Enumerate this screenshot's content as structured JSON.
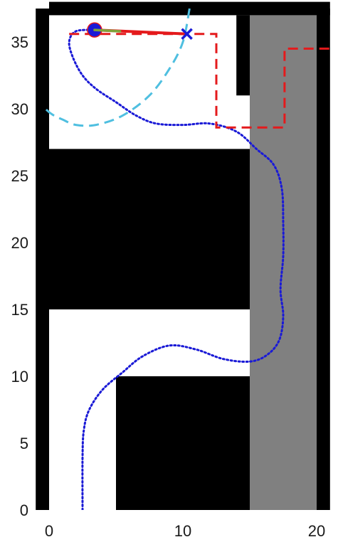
{
  "chart_data": {
    "type": "map",
    "xlim": [
      0,
      21
    ],
    "ylim": [
      0,
      37
    ],
    "x_ticks": [
      0,
      10,
      20
    ],
    "y_ticks": [
      0,
      5,
      10,
      15,
      20,
      25,
      30,
      35
    ],
    "x_tick_labels": [
      "0",
      "10",
      "20"
    ],
    "y_tick_labels": [
      "0",
      "5",
      "10",
      "15",
      "20",
      "25",
      "30",
      "35"
    ],
    "grid": false,
    "legend": "none",
    "colors": {
      "obstacle": "#000000",
      "free": "#ffffff",
      "shaded_region": "#808080",
      "planned_path": "#e41a1c",
      "reference_path": "#1a1ad6",
      "arc": "#4fbfe0",
      "robot": "#1a1ad6",
      "heading": "#7fa33a"
    },
    "obstacles": [
      {
        "x0": -1,
        "y0": 0,
        "x1": 0,
        "y1": 37.5
      },
      {
        "x0": 0,
        "y0": 37,
        "x1": 21,
        "y1": 38
      },
      {
        "x0": 20,
        "y0": 0,
        "x1": 21,
        "y1": 37.5
      },
      {
        "x0": 0,
        "y0": 15,
        "x1": 15,
        "y1": 27
      },
      {
        "x0": 5,
        "y0": 0,
        "x1": 15,
        "y1": 10
      },
      {
        "x0": 14,
        "y0": 31,
        "x1": 15,
        "y1": 37
      }
    ],
    "shaded_region": {
      "x0": 15,
      "y0": 0,
      "x1": 20,
      "y1": 37
    },
    "planned_path": [
      [
        1.5,
        35.6
      ],
      [
        12.5,
        35.6
      ],
      [
        12.5,
        28.6
      ],
      [
        17.6,
        28.6
      ],
      [
        17.6,
        34.5
      ],
      [
        21,
        34.5
      ]
    ],
    "executed_path": [
      [
        3.4,
        35.9
      ],
      [
        10.3,
        35.6
      ]
    ],
    "reference_path": [
      [
        2.5,
        0
      ],
      [
        2.5,
        4
      ],
      [
        2.6,
        6
      ],
      [
        3.0,
        7.5
      ],
      [
        4.0,
        9
      ],
      [
        5.5,
        10.3
      ],
      [
        7.0,
        11.5
      ],
      [
        9.0,
        12.3
      ],
      [
        11.0,
        12.0
      ],
      [
        13.0,
        11.3
      ],
      [
        15.0,
        11.1
      ],
      [
        16.3,
        11.6
      ],
      [
        17.2,
        12.7
      ],
      [
        17.5,
        14.5
      ],
      [
        17.3,
        16.5
      ],
      [
        17.5,
        19
      ],
      [
        17.5,
        21.5
      ],
      [
        17.4,
        24
      ],
      [
        16.8,
        25.8
      ],
      [
        15.5,
        27
      ],
      [
        14.0,
        28.3
      ],
      [
        12.0,
        28.9
      ],
      [
        10.0,
        28.8
      ],
      [
        8.0,
        28.9
      ],
      [
        6.5,
        29.5
      ],
      [
        5.0,
        30.5
      ],
      [
        3.5,
        31.5
      ],
      [
        2.5,
        32.5
      ],
      [
        1.8,
        33.8
      ],
      [
        1.5,
        35.0
      ],
      [
        2.0,
        35.8
      ],
      [
        3.4,
        35.9
      ]
    ],
    "arc": [
      [
        10.5,
        37.5
      ],
      [
        10.0,
        35.0
      ],
      [
        9.0,
        33.0
      ],
      [
        7.5,
        31.0
      ],
      [
        5.5,
        29.5
      ],
      [
        3.5,
        28.8
      ],
      [
        2.0,
        28.8
      ],
      [
        1.0,
        29.2
      ],
      [
        0.2,
        29.6
      ],
      [
        -0.5,
        30.2
      ]
    ],
    "robot": {
      "x": 3.4,
      "y": 35.9,
      "heading_end": [
        5.3,
        35.8
      ]
    },
    "goal": {
      "x": 10.3,
      "y": 35.6
    }
  }
}
